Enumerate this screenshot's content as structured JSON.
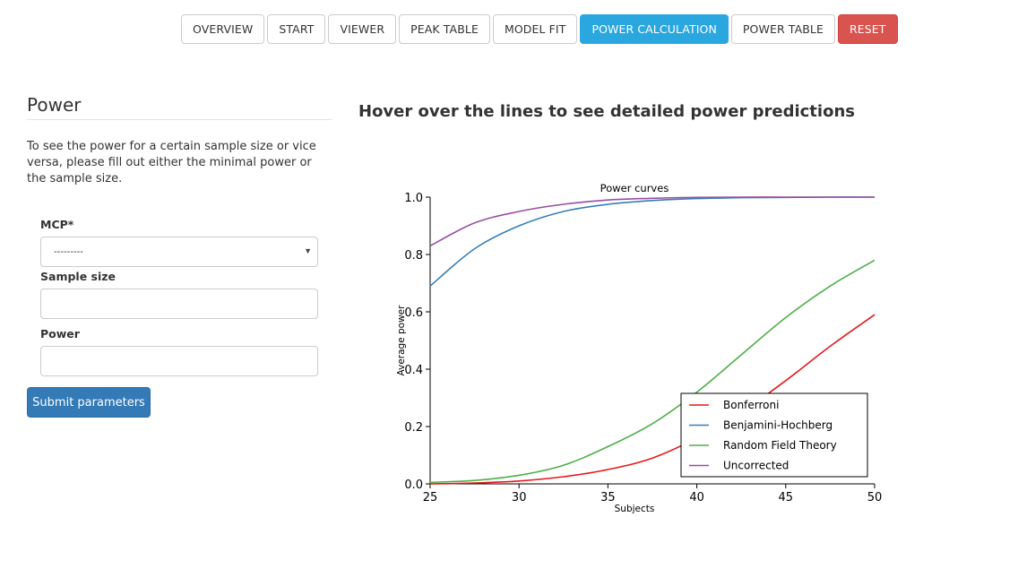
{
  "nav": {
    "tabs": [
      {
        "label": "OVERVIEW",
        "state": "default"
      },
      {
        "label": "START",
        "state": "default"
      },
      {
        "label": "VIEWER",
        "state": "default"
      },
      {
        "label": "PEAK TABLE",
        "state": "default"
      },
      {
        "label": "MODEL FIT",
        "state": "default"
      },
      {
        "label": "POWER CALCULATION",
        "state": "active"
      },
      {
        "label": "POWER TABLE",
        "state": "default"
      },
      {
        "label": "RESET",
        "state": "danger"
      }
    ]
  },
  "power_panel": {
    "title": "Power",
    "description": "To see the power for a certain sample size or vice versa, please fill out either the minimal power or the sample size.",
    "mcp_label": "MCP*",
    "mcp_value": "---------",
    "sample_size_label": "Sample size",
    "sample_size_value": "",
    "power_label": "Power",
    "power_value": "",
    "submit_label": "Submit parameters"
  },
  "plot_header": "Hover over the lines to see detailed power predictions",
  "colors": {
    "active_tab": "#2aa7de",
    "reset": "#d9534f",
    "submit": "#337ab7"
  },
  "chart_data": {
    "type": "line",
    "title": "Power curves",
    "xlabel": "Subjects",
    "ylabel": "Average power",
    "xlim": [
      25,
      50
    ],
    "ylim": [
      0,
      1
    ],
    "xticks": [
      25,
      30,
      35,
      40,
      45,
      50
    ],
    "yticks": [
      "0.0",
      "0.2",
      "0.4",
      "0.6",
      "0.8",
      "1.0"
    ],
    "legend_position": "bottom-right",
    "x": [
      25,
      27.5,
      30,
      32.5,
      35,
      37.5,
      40,
      42.5,
      45,
      47.5,
      50
    ],
    "series": [
      {
        "name": "Bonferroni",
        "color": "#e41a1c",
        "values": [
          0.0,
          0.003,
          0.01,
          0.025,
          0.05,
          0.09,
          0.16,
          0.25,
          0.36,
          0.48,
          0.59
        ]
      },
      {
        "name": "Benjamini-Hochberg",
        "color": "#377eb8",
        "values": [
          0.69,
          0.82,
          0.9,
          0.95,
          0.975,
          0.988,
          0.995,
          0.998,
          0.999,
          1.0,
          1.0
        ]
      },
      {
        "name": "Random Field Theory",
        "color": "#4daf4a",
        "values": [
          0.005,
          0.012,
          0.03,
          0.065,
          0.13,
          0.21,
          0.32,
          0.45,
          0.58,
          0.69,
          0.78
        ]
      },
      {
        "name": "Uncorrected",
        "color": "#984ea3",
        "values": [
          0.83,
          0.91,
          0.95,
          0.975,
          0.99,
          0.996,
          0.999,
          1.0,
          1.0,
          1.0,
          1.0
        ]
      }
    ]
  }
}
